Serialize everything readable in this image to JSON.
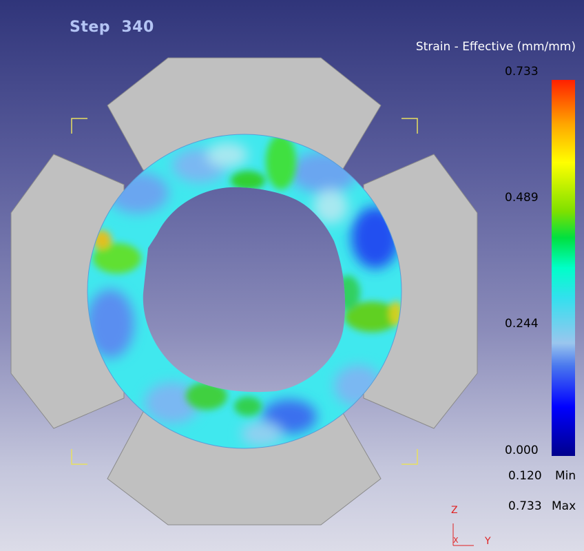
{
  "step": {
    "label": "Step",
    "number": "340"
  },
  "legend": {
    "title": "Strain - Effective (mm/mm)",
    "ticks": [
      "0.733",
      "0.489",
      "0.244",
      "0.000"
    ],
    "min_value": "0.120",
    "min_label": "Min",
    "max_value": "0.733",
    "max_label": "Max",
    "colors": [
      "#00008c",
      "#0000ff",
      "#4a78ee",
      "#9ac6ee",
      "#33e0ee",
      "#00ffc8",
      "#00e040",
      "#7ee000",
      "#ffff00",
      "#ffa800",
      "#ff2000"
    ]
  },
  "triad": {
    "z": "Z",
    "x": "X",
    "y": "Y"
  },
  "colors": {
    "die": "#c0c0c0",
    "die_edge": "#888888",
    "corner_marks": "#e8e060",
    "ring_base": "#40e8ee"
  }
}
